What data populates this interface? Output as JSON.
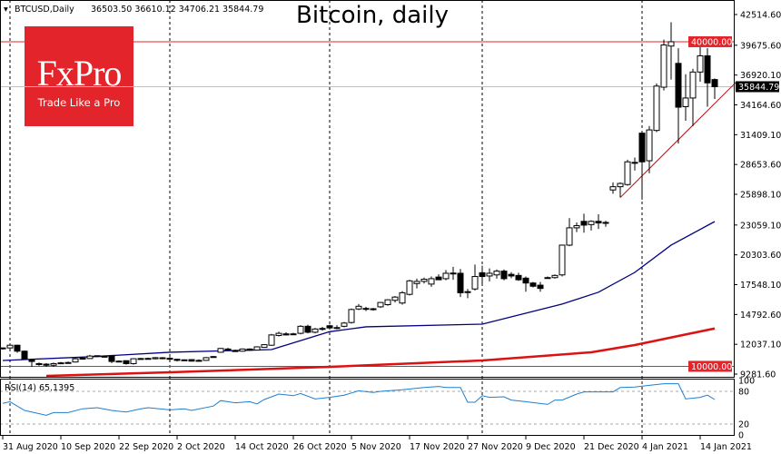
{
  "header": {
    "symbol_info": "BTCUSD,Daily",
    "ohlc_readout": "36503.50 36610.12 34706.21 35844.79",
    "title": "Bitcoin, daily"
  },
  "logo": {
    "brand": "FxPro",
    "tagline": "Trade Like a Pro",
    "color": "#e4242b"
  },
  "chart_data": [
    {
      "type": "candlestick",
      "title": "Bitcoin, daily",
      "symbol": "BTCUSD,Daily",
      "ylim": [
        9281.6,
        42514.6
      ],
      "grid": false,
      "y_ticks": [
        "42514.60",
        "39675.60",
        "36920.10",
        "34164.60",
        "31409.10",
        "28653.60",
        "25898.10",
        "23059.10",
        "20303.60",
        "17548.10",
        "14792.60",
        "12037.10",
        "9281.60"
      ],
      "x_tick_labels": [
        {
          "bar": 0,
          "label": "31 Aug 2020"
        },
        {
          "bar": 8,
          "label": "10 Sep 2020"
        },
        {
          "bar": 16,
          "label": "22 Sep 2020"
        },
        {
          "bar": 24,
          "label": "2 Oct 2020"
        },
        {
          "bar": 32,
          "label": "14 Oct 2020"
        },
        {
          "bar": 40,
          "label": "26 Oct 2020"
        },
        {
          "bar": 48,
          "label": "5 Nov 2020"
        },
        {
          "bar": 56,
          "label": "17 Nov 2020"
        },
        {
          "bar": 64,
          "label": "27 Nov 2020"
        },
        {
          "bar": 72,
          "label": "9 Dec 2020"
        },
        {
          "bar": 80,
          "label": "21 Dec 2020"
        },
        {
          "bar": 88,
          "label": "4 Jan 2021"
        },
        {
          "bar": 96,
          "label": "14 Jan 2021"
        }
      ],
      "period_separators_at_bar": [
        1,
        23,
        45,
        66,
        88
      ],
      "ohlc": [
        [
          11650,
          11750,
          11550,
          11700
        ],
        [
          11700,
          12050,
          11650,
          11950
        ],
        [
          11950,
          12000,
          11250,
          11400
        ],
        [
          11400,
          11450,
          10650,
          10700
        ],
        [
          10600,
          10700,
          9950,
          10450
        ],
        [
          10250,
          10350,
          10050,
          10200
        ],
        [
          10200,
          10300,
          9950,
          10100
        ],
        [
          10100,
          10350,
          9950,
          10250
        ],
        [
          10300,
          10400,
          10200,
          10320
        ],
        [
          10330,
          10450,
          10250,
          10350
        ],
        [
          10400,
          10800,
          10350,
          10700
        ],
        [
          10750,
          10850,
          10600,
          10720
        ],
        [
          10720,
          11050,
          10700,
          10950
        ],
        [
          10980,
          11000,
          10850,
          10900
        ],
        [
          10900,
          11000,
          10850,
          10930
        ],
        [
          10950,
          11000,
          10300,
          10450
        ],
        [
          10450,
          10550,
          10400,
          10480
        ],
        [
          10520,
          10550,
          10150,
          10250
        ],
        [
          10250,
          10750,
          10150,
          10700
        ],
        [
          10680,
          10780,
          10600,
          10720
        ],
        [
          10730,
          10800,
          10650,
          10700
        ],
        [
          10700,
          10850,
          10650,
          10800
        ],
        [
          10790,
          10850,
          10650,
          10760
        ],
        [
          10750,
          10850,
          10550,
          10650
        ],
        [
          10650,
          10700,
          10450,
          10550
        ],
        [
          10600,
          10650,
          10500,
          10580
        ],
        [
          10620,
          10650,
          10450,
          10480
        ],
        [
          10480,
          10650,
          10450,
          10550
        ],
        [
          10550,
          10850,
          10500,
          10800
        ],
        [
          10900,
          10950,
          10800,
          10850
        ],
        [
          11300,
          11700,
          11250,
          11650
        ],
        [
          11600,
          11700,
          11500,
          11520
        ],
        [
          11450,
          11550,
          11350,
          11430
        ],
        [
          11400,
          11650,
          11350,
          11600
        ],
        [
          11600,
          11650,
          11450,
          11480
        ],
        [
          11500,
          11850,
          11450,
          11800
        ],
        [
          11750,
          12050,
          11700,
          12000
        ],
        [
          11950,
          13000,
          11900,
          12900
        ],
        [
          12850,
          13200,
          12750,
          13050
        ],
        [
          13000,
          13150,
          12850,
          12900
        ],
        [
          12950,
          13100,
          12900,
          13000
        ],
        [
          13050,
          13800,
          12950,
          13700
        ],
        [
          13700,
          13850,
          13050,
          13150
        ],
        [
          13150,
          13550,
          13050,
          13450
        ],
        [
          13500,
          13650,
          13300,
          13480
        ],
        [
          13750,
          13850,
          13450,
          13550
        ],
        [
          13550,
          13800,
          13450,
          13580
        ],
        [
          13700,
          14100,
          13600,
          14000
        ],
        [
          14050,
          15350,
          13950,
          15250
        ],
        [
          15300,
          15750,
          15200,
          15550
        ],
        [
          15350,
          15500,
          15100,
          15300
        ],
        [
          15280,
          15400,
          15150,
          15320
        ],
        [
          15500,
          15950,
          15400,
          15900
        ],
        [
          15700,
          16200,
          15600,
          16150
        ],
        [
          16100,
          16500,
          15900,
          16400
        ],
        [
          15850,
          16950,
          15700,
          16800
        ],
        [
          16650,
          18000,
          16550,
          17900
        ],
        [
          17650,
          18100,
          17200,
          17850
        ],
        [
          17850,
          18200,
          17650,
          18050
        ],
        [
          17600,
          18300,
          17350,
          18100
        ],
        [
          18250,
          18500,
          18000,
          18000
        ],
        [
          18100,
          18900,
          17950,
          18600
        ],
        [
          18600,
          19200,
          18000,
          18620
        ],
        [
          18600,
          19000,
          16400,
          16800
        ],
        [
          16850,
          17150,
          16300,
          16900
        ],
        [
          17150,
          19400,
          17000,
          18300
        ],
        [
          18650,
          19300,
          17500,
          18300
        ],
        [
          18350,
          19050,
          17850,
          18600
        ],
        [
          18450,
          18950,
          18100,
          18800
        ],
        [
          18800,
          18950,
          17950,
          18100
        ],
        [
          18500,
          18700,
          18150,
          18350
        ],
        [
          18400,
          18650,
          17900,
          18000
        ],
        [
          18150,
          18300,
          16900,
          17700
        ],
        [
          17700,
          17800,
          17300,
          17400
        ],
        [
          17500,
          17800,
          16900,
          17200
        ],
        [
          18150,
          18300,
          18100,
          18200
        ],
        [
          18200,
          18500,
          18100,
          18400
        ],
        [
          18450,
          21250,
          18300,
          21200
        ],
        [
          21200,
          23700,
          21100,
          22800
        ],
        [
          22800,
          23300,
          22400,
          23000
        ],
        [
          23400,
          24100,
          22350,
          23050
        ],
        [
          23100,
          23500,
          22550,
          23400
        ],
        [
          23400,
          24050,
          22700,
          23250
        ],
        [
          23250,
          23450,
          22900,
          23300
        ],
        [
          26300,
          27000,
          25950,
          26600
        ],
        [
          26600,
          27000,
          25600,
          26900
        ],
        [
          26800,
          29100,
          26700,
          28900
        ],
        [
          28850,
          29300,
          28100,
          28800
        ],
        [
          31550,
          31700,
          25400,
          28900
        ],
        [
          29000,
          32200,
          27850,
          31850
        ],
        [
          31800,
          36150,
          31650,
          35900
        ],
        [
          35800,
          40200,
          35500,
          39700
        ],
        [
          39600,
          41800,
          36500,
          40000
        ],
        [
          38000,
          39400,
          30600,
          33950
        ],
        [
          34000,
          37000,
          32700,
          34800
        ],
        [
          34800,
          37500,
          32200,
          37200
        ],
        [
          37200,
          40100,
          36300,
          38700
        ],
        [
          38700,
          39400,
          34000,
          36200
        ],
        [
          36503.5,
          36610.12,
          34706.21,
          35844.79
        ]
      ],
      "moving_averages": [
        {
          "color": "#000080",
          "points": [
            [
              0,
              10540
            ],
            [
              12,
              10880
            ],
            [
              23,
              11300
            ],
            [
              37,
              11550
            ],
            [
              45,
              13200
            ],
            [
              50,
              13650
            ],
            [
              66,
              13900
            ],
            [
              77,
              15750
            ],
            [
              82,
              16850
            ],
            [
              87,
              18680
            ],
            [
              92,
              21200
            ],
            [
              98,
              23380
            ]
          ]
        },
        {
          "color": "#dd1111",
          "points": [
            [
              6,
              9110
            ],
            [
              23,
              9450
            ],
            [
              45,
              9950
            ],
            [
              66,
              10540
            ],
            [
              81,
              11300
            ],
            [
              87,
              11970
            ],
            [
              98,
              13500
            ]
          ]
        }
      ],
      "horizontal_levels": [
        {
          "value": 40000.0,
          "label": "40000.00",
          "color": "#e4242b"
        },
        {
          "value": 10000.0,
          "label": "10000.00",
          "color": "#e4242b"
        }
      ],
      "current_price": {
        "value": 35844.79,
        "label": "35844.79",
        "color": "#c0c0c0"
      },
      "trendline": {
        "color": "#b01010",
        "from": [
          85,
          25600
        ],
        "to": [
          101,
          36300
        ]
      }
    },
    {
      "type": "line",
      "label": "RSI(14) 65.1395",
      "ylim": [
        0,
        100
      ],
      "y_ticks": [
        "100",
        "80",
        "20",
        "0"
      ],
      "levels": [
        80,
        20
      ],
      "color": "#1e7fd0",
      "points": [
        [
          0,
          58
        ],
        [
          1,
          61
        ],
        [
          3,
          45
        ],
        [
          6,
          36
        ],
        [
          7,
          41
        ],
        [
          9,
          41
        ],
        [
          11,
          48
        ],
        [
          13,
          50
        ],
        [
          15,
          45
        ],
        [
          17,
          42
        ],
        [
          19,
          48
        ],
        [
          20,
          50
        ],
        [
          23,
          46
        ],
        [
          25,
          48
        ],
        [
          26,
          45
        ],
        [
          29,
          53
        ],
        [
          30,
          63
        ],
        [
          32,
          59
        ],
        [
          34,
          61
        ],
        [
          35,
          57
        ],
        [
          36,
          65
        ],
        [
          38,
          75
        ],
        [
          40,
          72
        ],
        [
          41,
          76
        ],
        [
          43,
          66
        ],
        [
          45,
          69
        ],
        [
          47,
          73
        ],
        [
          49,
          81
        ],
        [
          51,
          78
        ],
        [
          52,
          80
        ],
        [
          55,
          83
        ],
        [
          58,
          87
        ],
        [
          60,
          89
        ],
        [
          61,
          87
        ],
        [
          63,
          87
        ],
        [
          64,
          60
        ],
        [
          65,
          60
        ],
        [
          66,
          72
        ],
        [
          67,
          69
        ],
        [
          69,
          70
        ],
        [
          70,
          64
        ],
        [
          72,
          61
        ],
        [
          75,
          56
        ],
        [
          76,
          64
        ],
        [
          77,
          64
        ],
        [
          79,
          75
        ],
        [
          80,
          79
        ],
        [
          84,
          79
        ],
        [
          85,
          87
        ],
        [
          87,
          88
        ],
        [
          89,
          91
        ],
        [
          91,
          94
        ],
        [
          93,
          94
        ],
        [
          94,
          66
        ],
        [
          96,
          69
        ],
        [
          97,
          73
        ],
        [
          98,
          65
        ]
      ]
    }
  ]
}
